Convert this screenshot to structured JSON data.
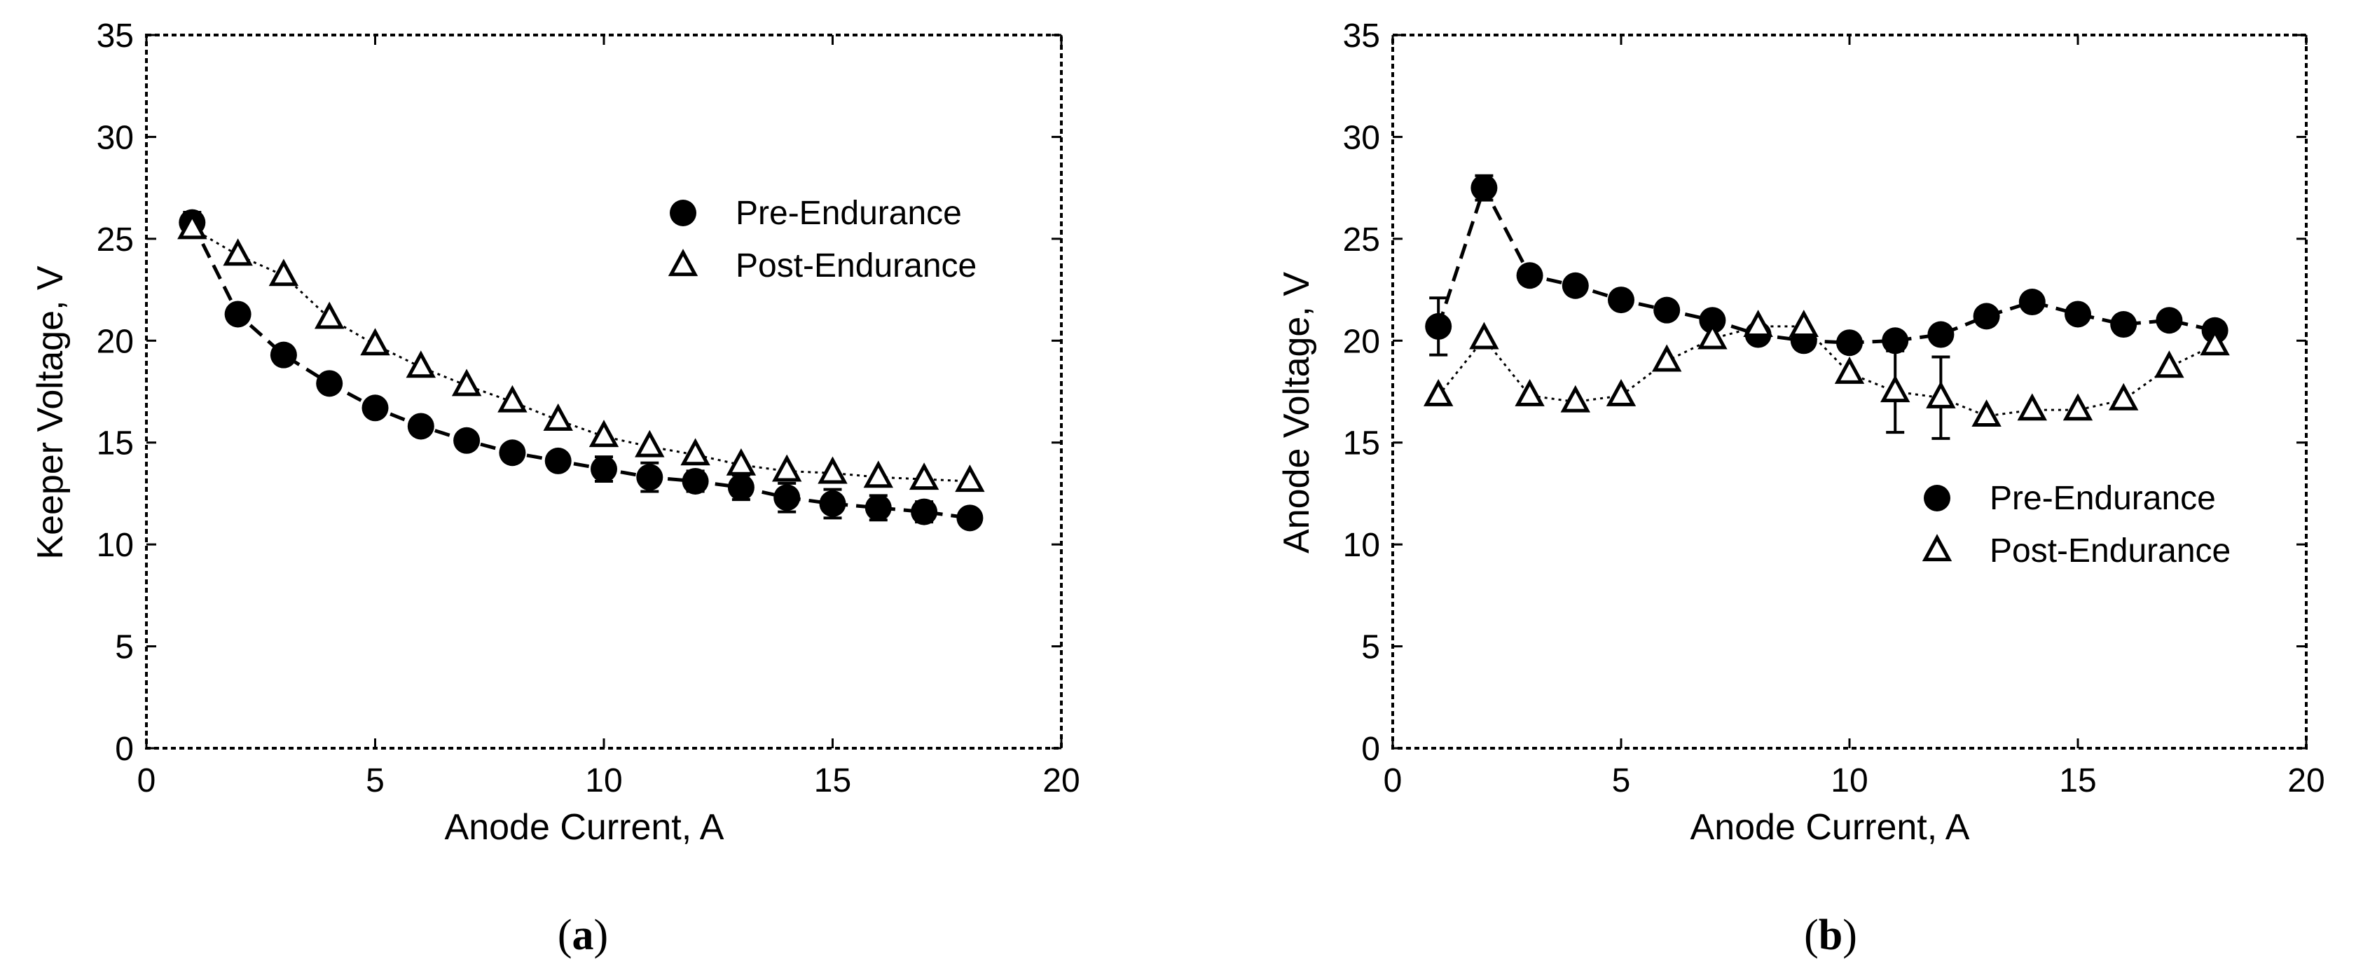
{
  "chart_data": [
    {
      "type": "scatter",
      "panel_label": "a",
      "xlabel": "Anode Current, A",
      "ylabel": "Keeper Voltage, V",
      "xlim": [
        0,
        20
      ],
      "ylim": [
        0,
        35
      ],
      "xticks": [
        0,
        5,
        10,
        15,
        20
      ],
      "yticks": [
        0,
        5,
        10,
        15,
        20,
        25,
        30,
        35
      ],
      "legend_position": "top-right",
      "series": [
        {
          "name": "Pre-Endurance",
          "marker": "filled-circle",
          "line": "dashed",
          "x": [
            1,
            2,
            3,
            4,
            5,
            6,
            7,
            8,
            9,
            10,
            11,
            12,
            13,
            14,
            15,
            16,
            17,
            18
          ],
          "y": [
            25.8,
            21.3,
            19.3,
            17.9,
            16.7,
            15.8,
            15.1,
            14.5,
            14.1,
            13.7,
            13.3,
            13.1,
            12.8,
            12.3,
            12.0,
            11.8,
            11.6,
            11.3
          ],
          "err": [
            0.5,
            0,
            0,
            0,
            0,
            0,
            0,
            0,
            0,
            0.6,
            0.7,
            0.5,
            0.6,
            0.7,
            0.7,
            0.6,
            0.5,
            0
          ]
        },
        {
          "name": "Post-Endurance",
          "marker": "open-triangle",
          "line": "dotted",
          "x": [
            1,
            2,
            3,
            4,
            5,
            6,
            7,
            8,
            9,
            10,
            11,
            12,
            13,
            14,
            15,
            16,
            17,
            18
          ],
          "y": [
            25.5,
            24.2,
            23.2,
            21.1,
            19.8,
            18.7,
            17.8,
            17.0,
            16.1,
            15.3,
            14.8,
            14.4,
            13.9,
            13.6,
            13.5,
            13.3,
            13.2,
            13.1
          ],
          "err": []
        }
      ]
    },
    {
      "type": "scatter",
      "panel_label": "b",
      "xlabel": "Anode Current, A",
      "ylabel": "Anode Voltage, V",
      "xlim": [
        0,
        20
      ],
      "ylim": [
        0,
        35
      ],
      "xticks": [
        0,
        5,
        10,
        15,
        20
      ],
      "yticks": [
        0,
        5,
        10,
        15,
        20,
        25,
        30,
        35
      ],
      "legend_position": "center-right",
      "series": [
        {
          "name": "Pre-Endurance",
          "marker": "filled-circle",
          "line": "dashed",
          "x": [
            1,
            2,
            3,
            4,
            5,
            6,
            7,
            8,
            9,
            10,
            11,
            12,
            13,
            14,
            15,
            16,
            17,
            18
          ],
          "y": [
            20.7,
            27.5,
            23.2,
            22.7,
            22.0,
            21.5,
            21.0,
            20.3,
            20.0,
            19.9,
            20.0,
            20.3,
            21.2,
            21.9,
            21.3,
            20.8,
            21.0,
            20.5
          ],
          "err": [
            1.4,
            0.6,
            0,
            0,
            0,
            0,
            0,
            0,
            0,
            0,
            0,
            0,
            0,
            0,
            0,
            0,
            0,
            0
          ]
        },
        {
          "name": "Post-Endurance",
          "marker": "open-triangle",
          "line": "dotted",
          "x": [
            1,
            2,
            3,
            4,
            5,
            6,
            7,
            8,
            9,
            10,
            11,
            12,
            13,
            14,
            15,
            16,
            17,
            18
          ],
          "y": [
            17.3,
            20.1,
            17.3,
            17.0,
            17.3,
            19.0,
            20.1,
            20.7,
            20.7,
            18.4,
            17.5,
            17.2,
            16.3,
            16.6,
            16.6,
            17.1,
            18.7,
            19.8
          ],
          "err": [
            0,
            0,
            0,
            0,
            0,
            0,
            0,
            0,
            0,
            0,
            2.0,
            2.0,
            0,
            0,
            0,
            0,
            0,
            0
          ]
        }
      ]
    }
  ]
}
